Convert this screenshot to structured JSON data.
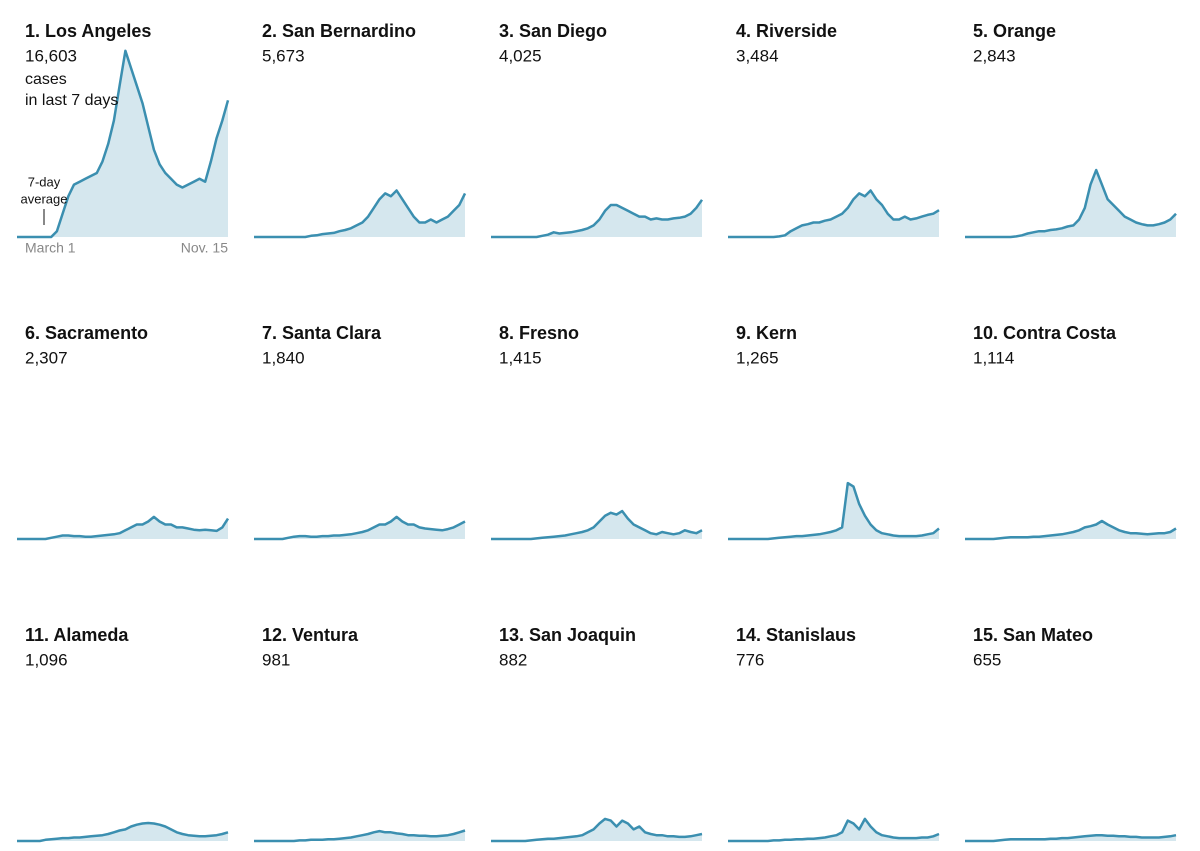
{
  "chart_data": [
    {
      "type": "line",
      "title": "1. Los Angeles",
      "subtitle": "16,603",
      "annotations": [
        "cases",
        "in last 7 days",
        "7-day",
        "average"
      ],
      "categories": [
        "March 1",
        null,
        null,
        null,
        null,
        null,
        null,
        null,
        null,
        null,
        null,
        null,
        null,
        null,
        null,
        null,
        null,
        null,
        null,
        null,
        null,
        null,
        null,
        null,
        null,
        null,
        null,
        null,
        null,
        null,
        null,
        null,
        null,
        null,
        null,
        null,
        null,
        "Nov. 15"
      ],
      "values": [
        0,
        0,
        0,
        0,
        0,
        0,
        0,
        100,
        400,
        700,
        900,
        950,
        1000,
        1050,
        1100,
        1300,
        1600,
        2000,
        2600,
        3200,
        2900,
        2600,
        2300,
        1900,
        1500,
        1250,
        1100,
        1000,
        900,
        850,
        900,
        950,
        1000,
        950,
        1300,
        1700,
        2000,
        2350
      ],
      "color": "#3b8fb0",
      "ylim": [
        0,
        3300
      ]
    },
    {
      "type": "line",
      "title": "2. San Bernardino",
      "subtitle": "5,673",
      "values": [
        0,
        0,
        0,
        0,
        0,
        0,
        0,
        0,
        0,
        0,
        20,
        30,
        50,
        60,
        70,
        100,
        120,
        150,
        200,
        250,
        350,
        500,
        650,
        750,
        700,
        800,
        650,
        500,
        350,
        250,
        250,
        300,
        250,
        300,
        350,
        450,
        550,
        750
      ],
      "color": "#3b8fb0",
      "ylim": [
        0,
        3300
      ]
    },
    {
      "type": "line",
      "title": "3. San Diego",
      "subtitle": "4,025",
      "values": [
        0,
        0,
        0,
        0,
        0,
        0,
        0,
        0,
        0,
        20,
        40,
        80,
        60,
        70,
        80,
        100,
        120,
        150,
        200,
        300,
        450,
        550,
        550,
        500,
        450,
        400,
        350,
        350,
        300,
        320,
        300,
        300,
        320,
        330,
        350,
        400,
        500,
        640
      ],
      "color": "#3b8fb0",
      "ylim": [
        0,
        3300
      ]
    },
    {
      "type": "line",
      "title": "4. Riverside",
      "subtitle": "3,484",
      "values": [
        0,
        0,
        0,
        0,
        0,
        0,
        0,
        0,
        0,
        10,
        30,
        100,
        150,
        200,
        220,
        250,
        250,
        280,
        300,
        350,
        400,
        500,
        650,
        750,
        700,
        800,
        650,
        550,
        400,
        300,
        300,
        350,
        300,
        320,
        350,
        380,
        400,
        460
      ],
      "color": "#3b8fb0",
      "ylim": [
        0,
        3300
      ]
    },
    {
      "type": "line",
      "title": "5. Orange",
      "subtitle": "2,843",
      "values": [
        0,
        0,
        0,
        0,
        0,
        0,
        0,
        0,
        0,
        10,
        30,
        60,
        80,
        100,
        100,
        120,
        130,
        150,
        180,
        200,
        300,
        500,
        900,
        1150,
        900,
        650,
        550,
        450,
        350,
        300,
        250,
        220,
        200,
        200,
        220,
        250,
        300,
        400
      ],
      "color": "#3b8fb0",
      "ylim": [
        0,
        3300
      ]
    },
    {
      "type": "line",
      "title": "6. Sacramento",
      "subtitle": "2,307",
      "values": [
        0,
        0,
        0,
        0,
        0,
        0,
        20,
        40,
        60,
        60,
        50,
        50,
        40,
        40,
        50,
        60,
        70,
        80,
        100,
        150,
        200,
        250,
        250,
        300,
        380,
        300,
        250,
        250,
        200,
        200,
        180,
        160,
        150,
        160,
        150,
        140,
        200,
        350
      ],
      "color": "#3b8fb0",
      "ylim": [
        0,
        3300
      ]
    },
    {
      "type": "line",
      "title": "7. Santa Clara",
      "subtitle": "1,840",
      "values": [
        0,
        0,
        0,
        0,
        0,
        0,
        20,
        40,
        50,
        50,
        40,
        40,
        50,
        50,
        60,
        60,
        70,
        80,
        100,
        120,
        150,
        200,
        250,
        250,
        300,
        380,
        300,
        250,
        250,
        200,
        180,
        170,
        160,
        150,
        170,
        200,
        250,
        300
      ],
      "color": "#3b8fb0",
      "ylim": [
        0,
        3300
      ]
    },
    {
      "type": "line",
      "title": "8. Fresno",
      "subtitle": "1,415",
      "values": [
        0,
        0,
        0,
        0,
        0,
        0,
        0,
        0,
        10,
        20,
        30,
        40,
        50,
        60,
        80,
        100,
        120,
        150,
        200,
        300,
        400,
        450,
        420,
        480,
        350,
        250,
        200,
        150,
        100,
        80,
        120,
        100,
        80,
        100,
        150,
        120,
        100,
        150
      ],
      "color": "#3b8fb0",
      "ylim": [
        0,
        3300
      ]
    },
    {
      "type": "line",
      "title": "9. Kern",
      "subtitle": "1,265",
      "values": [
        0,
        0,
        0,
        0,
        0,
        0,
        0,
        0,
        10,
        20,
        30,
        40,
        50,
        50,
        60,
        70,
        80,
        100,
        120,
        150,
        200,
        960,
        900,
        600,
        400,
        250,
        150,
        100,
        80,
        60,
        50,
        50,
        50,
        50,
        60,
        80,
        100,
        180
      ],
      "color": "#3b8fb0",
      "ylim": [
        0,
        3300
      ]
    },
    {
      "type": "line",
      "title": "10. Contra Costa",
      "subtitle": "1,114",
      "values": [
        0,
        0,
        0,
        0,
        0,
        0,
        10,
        20,
        30,
        30,
        30,
        30,
        40,
        40,
        50,
        60,
        70,
        80,
        100,
        120,
        150,
        200,
        220,
        250,
        310,
        250,
        200,
        150,
        120,
        100,
        100,
        90,
        80,
        90,
        100,
        100,
        120,
        180
      ],
      "color": "#3b8fb0",
      "ylim": [
        0,
        3300
      ]
    },
    {
      "type": "line",
      "title": "11. Alameda",
      "subtitle": "1,096",
      "values": [
        0,
        0,
        0,
        0,
        0,
        20,
        30,
        40,
        50,
        50,
        60,
        60,
        70,
        80,
        90,
        100,
        120,
        150,
        180,
        200,
        250,
        280,
        300,
        310,
        300,
        280,
        250,
        200,
        150,
        120,
        100,
        90,
        80,
        80,
        90,
        100,
        120,
        150
      ],
      "color": "#3b8fb0",
      "ylim": [
        0,
        3300
      ]
    },
    {
      "type": "line",
      "title": "12. Ventura",
      "subtitle": "981",
      "values": [
        0,
        0,
        0,
        0,
        0,
        0,
        0,
        0,
        10,
        10,
        20,
        20,
        20,
        30,
        30,
        40,
        50,
        60,
        80,
        100,
        120,
        150,
        170,
        150,
        150,
        130,
        120,
        100,
        100,
        90,
        90,
        80,
        80,
        90,
        100,
        120,
        150,
        180
      ],
      "color": "#3b8fb0",
      "ylim": [
        0,
        3300
      ]
    },
    {
      "type": "line",
      "title": "13. San Joaquin",
      "subtitle": "882",
      "values": [
        0,
        0,
        0,
        0,
        0,
        0,
        0,
        10,
        20,
        30,
        40,
        40,
        50,
        60,
        70,
        80,
        100,
        150,
        200,
        300,
        380,
        350,
        250,
        350,
        300,
        200,
        250,
        150,
        120,
        100,
        100,
        80,
        80,
        70,
        70,
        80,
        100,
        120
      ],
      "color": "#3b8fb0",
      "ylim": [
        0,
        3300
      ]
    },
    {
      "type": "line",
      "title": "14. Stanislaus",
      "subtitle": "776",
      "values": [
        0,
        0,
        0,
        0,
        0,
        0,
        0,
        0,
        10,
        10,
        20,
        20,
        30,
        30,
        40,
        40,
        50,
        60,
        80,
        100,
        150,
        350,
        300,
        200,
        380,
        250,
        150,
        100,
        80,
        60,
        50,
        50,
        50,
        50,
        60,
        60,
        80,
        120
      ],
      "color": "#3b8fb0",
      "ylim": [
        0,
        3300
      ]
    },
    {
      "type": "line",
      "title": "15. San Mateo",
      "subtitle": "655",
      "values": [
        0,
        0,
        0,
        0,
        0,
        0,
        10,
        20,
        30,
        30,
        30,
        30,
        30,
        30,
        30,
        40,
        40,
        50,
        50,
        60,
        70,
        80,
        90,
        100,
        100,
        90,
        90,
        80,
        80,
        70,
        70,
        60,
        60,
        60,
        60,
        70,
        80,
        100
      ],
      "color": "#3b8fb0",
      "ylim": [
        0,
        3300
      ]
    }
  ]
}
